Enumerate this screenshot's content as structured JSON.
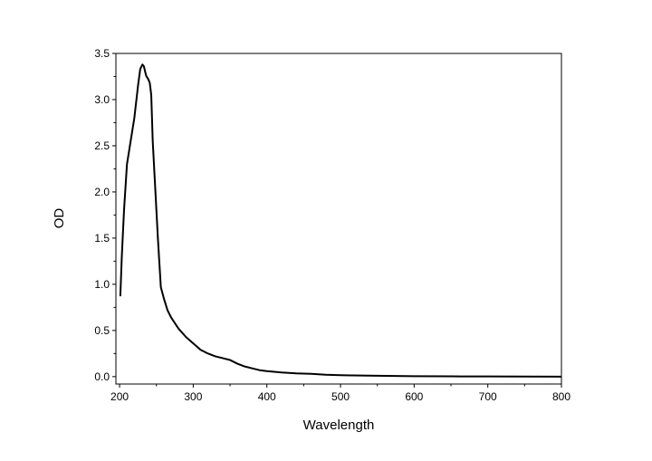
{
  "chart_data": {
    "type": "line",
    "title": "",
    "xlabel": "Wavelength",
    "ylabel": "OD",
    "xlim": [
      195,
      800
    ],
    "ylim": [
      -0.08,
      3.5
    ],
    "x_ticks": [
      200,
      300,
      400,
      500,
      600,
      700,
      800
    ],
    "y_ticks": [
      0.0,
      0.5,
      1.0,
      1.5,
      2.0,
      2.5,
      3.0,
      3.5
    ],
    "x_tick_labels": [
      "200",
      "300",
      "400",
      "500",
      "600",
      "700",
      "800"
    ],
    "y_tick_labels": [
      "0.0",
      "0.5",
      "1.0",
      "1.5",
      "2.0",
      "2.5",
      "3.0",
      "3.5"
    ],
    "grid": false,
    "legend": "none",
    "series": [
      {
        "color": "#000000",
        "x": [
          201,
          203,
          206,
          210,
          215,
          220,
          225,
          228,
          231,
          233,
          236,
          239,
          241,
          243,
          245,
          248,
          252,
          256,
          260,
          265,
          270,
          275,
          280,
          290,
          300,
          310,
          320,
          330,
          340,
          350,
          360,
          370,
          380,
          390,
          400,
          420,
          440,
          460,
          480,
          500,
          550,
          600,
          650,
          700,
          750,
          800
        ],
        "y": [
          0.87,
          1.3,
          1.8,
          2.3,
          2.55,
          2.8,
          3.15,
          3.33,
          3.38,
          3.36,
          3.26,
          3.22,
          3.18,
          3.05,
          2.55,
          2.1,
          1.5,
          0.97,
          0.85,
          0.72,
          0.64,
          0.58,
          0.52,
          0.43,
          0.36,
          0.29,
          0.25,
          0.22,
          0.2,
          0.18,
          0.14,
          0.11,
          0.09,
          0.07,
          0.06,
          0.045,
          0.035,
          0.03,
          0.02,
          0.015,
          0.01,
          0.005,
          0.003,
          0.002,
          0.001,
          0.0
        ]
      }
    ]
  }
}
